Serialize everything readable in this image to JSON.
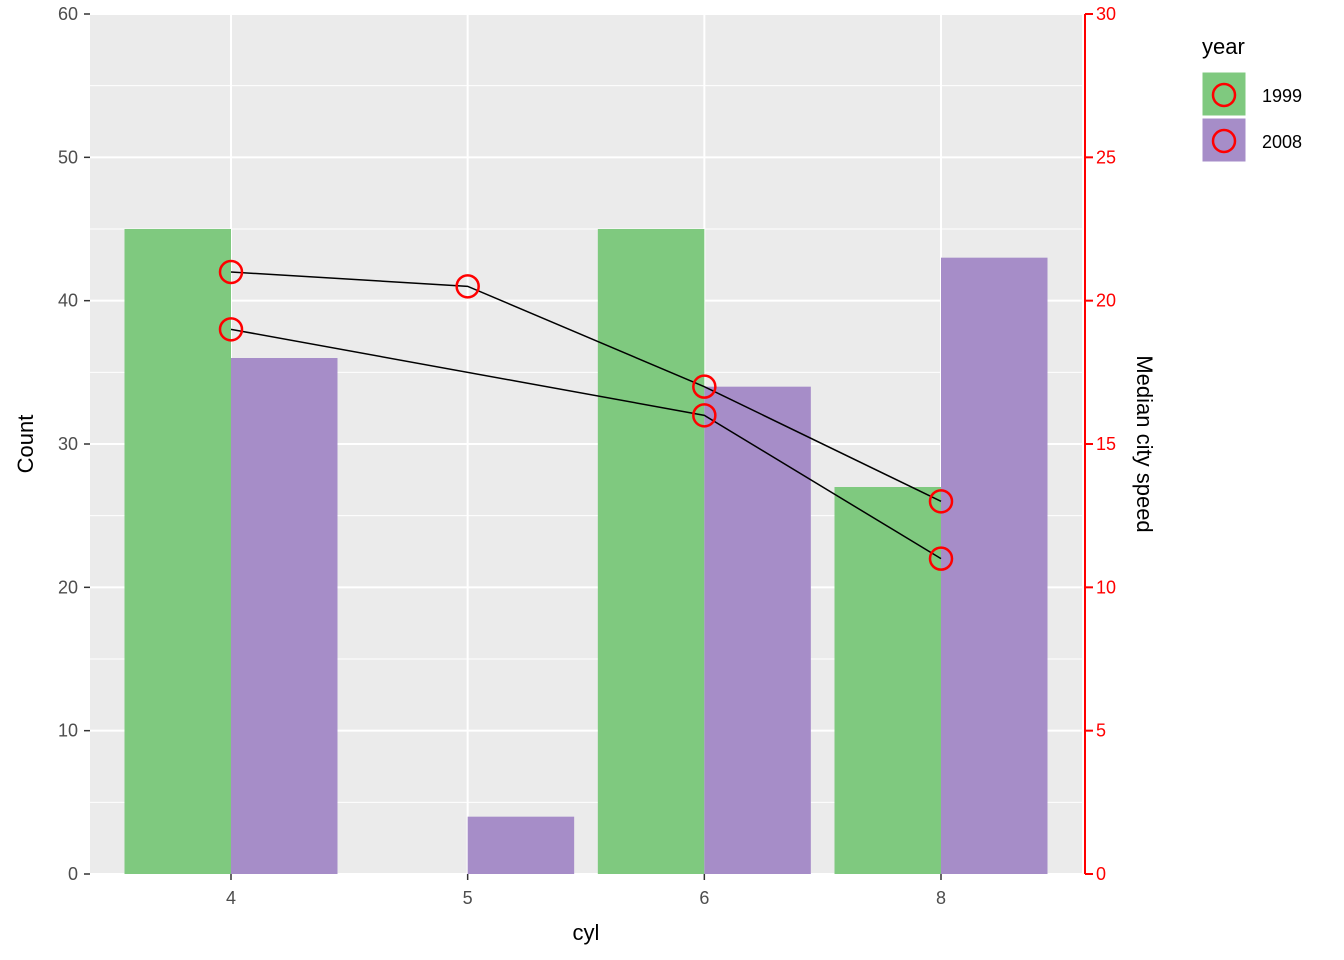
{
  "chart_data": {
    "type": "bar",
    "categories": [
      "4",
      "5",
      "6",
      "8"
    ],
    "xlabel": "cyl",
    "ylabel": "Count",
    "ylim": [
      0,
      60
    ],
    "y_ticks": [
      0,
      10,
      20,
      30,
      40,
      50,
      60
    ],
    "y2label": "Median city speed",
    "y2lim": [
      0,
      30
    ],
    "y2_ticks": [
      0,
      5,
      10,
      15,
      20,
      25,
      30
    ],
    "legend": {
      "title": "year",
      "position": "right",
      "entries": [
        {
          "label": "1999",
          "fill": "#7fc97f"
        },
        {
          "label": "2008",
          "fill": "#a68dc8"
        }
      ]
    },
    "series": [
      {
        "name": "1999",
        "color": "#7fc97f",
        "values": [
          45,
          null,
          45,
          27
        ]
      },
      {
        "name": "2008",
        "color": "#a68dc8",
        "values": [
          36,
          4,
          34,
          43
        ]
      }
    ],
    "lines": [
      {
        "categories": [
          "4",
          "5",
          "6",
          "8"
        ],
        "values": [
          21,
          20.5,
          17,
          13
        ]
      },
      {
        "categories": [
          "4",
          "6",
          "8"
        ],
        "values": [
          19,
          16,
          11
        ]
      }
    ],
    "colors": {
      "panel_background": "#ebebeb",
      "grid": "#ffffff",
      "secondary_axis": "#ff0000",
      "point_stroke": "#ff0000",
      "line": "#000000"
    },
    "grid": true
  }
}
